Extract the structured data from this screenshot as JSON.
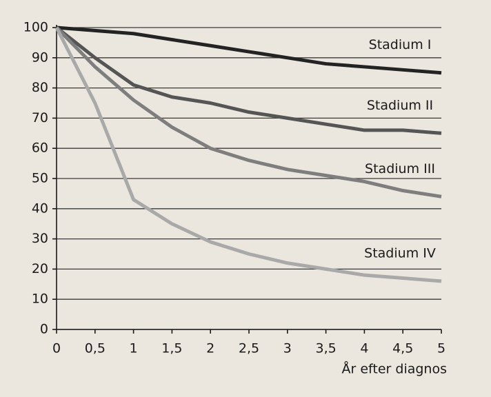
{
  "chart_data": {
    "type": "line",
    "x_label": "År efter diagnos",
    "x": [
      0,
      0.5,
      1,
      1.5,
      2,
      2.5,
      3,
      3.5,
      4,
      4.5,
      5
    ],
    "series": [
      {
        "name": "Stadium I",
        "color": "#232323",
        "values": [
          100,
          99,
          98,
          96,
          94,
          92,
          90,
          88,
          87,
          86,
          85
        ]
      },
      {
        "name": "Stadium II",
        "color": "#555555",
        "values": [
          100,
          90,
          81,
          77,
          75,
          72,
          70,
          68,
          66,
          66,
          65
        ]
      },
      {
        "name": "Stadium III",
        "color": "#7e7e7e",
        "values": [
          100,
          87,
          76,
          67,
          60,
          56,
          53,
          51,
          49,
          46,
          44
        ]
      },
      {
        "name": "Stadium IV",
        "color": "#a9a9a9",
        "values": [
          100,
          75,
          43,
          35,
          29,
          25,
          22,
          20,
          18,
          17,
          16
        ]
      }
    ],
    "xlim": [
      0,
      5
    ],
    "xticks": [
      0,
      {
        "value": 0.5,
        "label": "0,5"
      },
      1,
      {
        "value": 1.5,
        "label": "1,5"
      },
      2,
      {
        "value": 2.5,
        "label": "2,5"
      },
      3,
      {
        "value": 3.5,
        "label": "3,5"
      },
      4,
      {
        "value": 4.5,
        "label": "4,5"
      },
      5
    ],
    "ylim": [
      0,
      100
    ],
    "yticks": [
      0,
      10,
      20,
      30,
      40,
      50,
      60,
      70,
      80,
      90,
      100
    ],
    "grid": true
  }
}
